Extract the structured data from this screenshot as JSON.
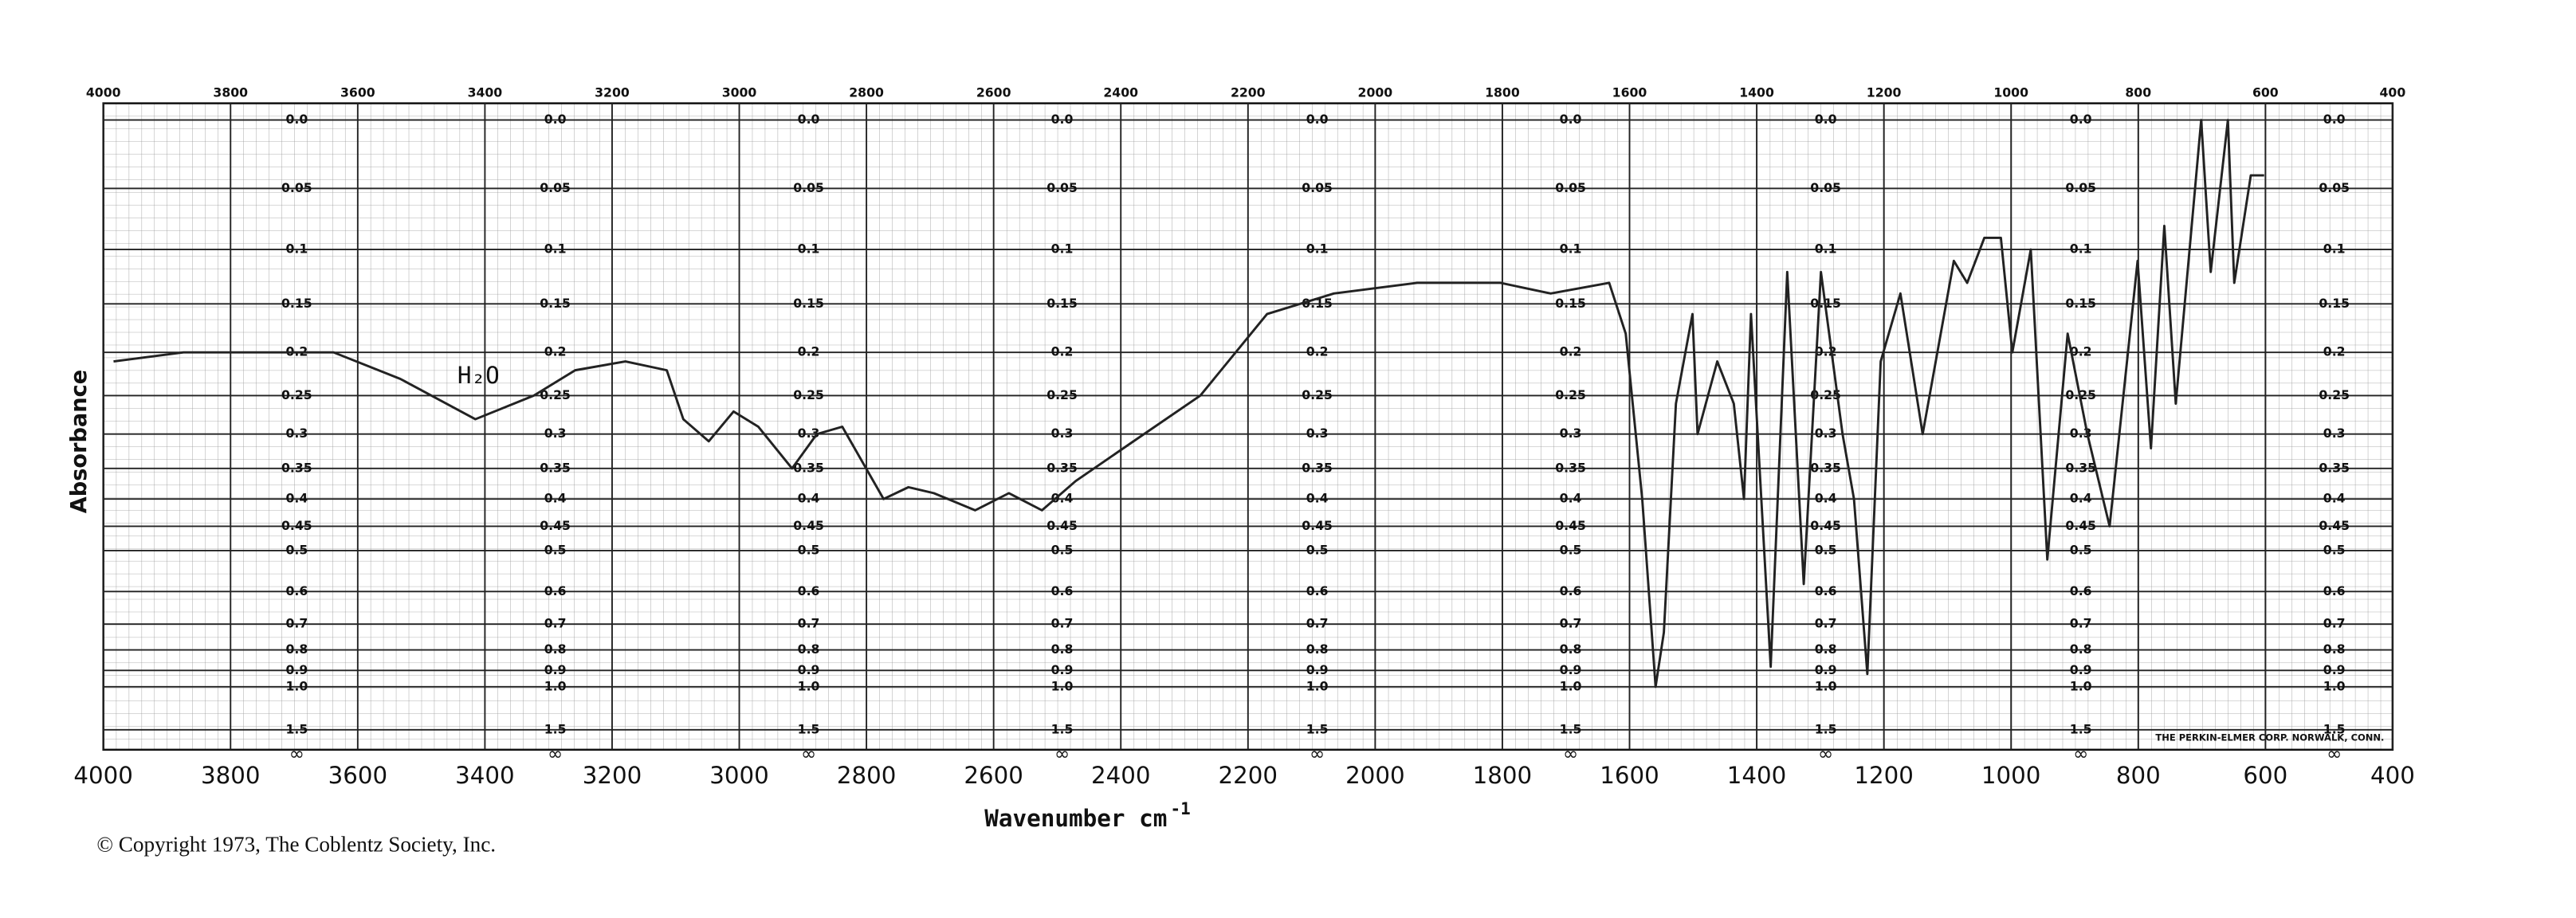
{
  "chart_data": {
    "type": "line",
    "xlabel": "Wavenumber cm",
    "xlabel_superscript": "-1",
    "ylabel": "Absorbance",
    "annotation": "H₂O",
    "y_bottom_label": "∞",
    "imprint": "THE PERKIN-ELMER CORP. NORWALK, CONN.",
    "copyright": "© Copyright 1973, The Coblentz Society, Inc.",
    "color": "#222222",
    "grid": true,
    "yscale": "transmittance",
    "xlim": [
      4000,
      400
    ],
    "ylim": [
      0,
      2
    ],
    "xticks": [
      4000,
      3800,
      3600,
      3400,
      3200,
      3000,
      2800,
      2600,
      2400,
      2200,
      2000,
      1800,
      1600,
      1400,
      1200,
      1000,
      800,
      600,
      400
    ],
    "yticks": [
      {
        "value": 0,
        "label": "0.0"
      },
      0.05,
      0.1,
      0.15,
      0.2,
      0.25,
      0.3,
      0.35,
      0.4,
      0.45,
      0.5,
      0.6,
      0.7,
      0.8,
      0.9,
      {
        "value": 1,
        "label": "1.0"
      },
      1.5
    ],
    "x": [
      3984,
      3874,
      3638,
      3533,
      3415,
      3323,
      3258,
      3179,
      3114,
      3088,
      3048,
      3009,
      2970,
      2917,
      2878,
      2838,
      2773,
      2734,
      2694,
      2629,
      2576,
      2524,
      2471,
      2380,
      2275,
      2170,
      2065,
      1934,
      1803,
      1724,
      1632,
      1606,
      1580,
      1559,
      1546,
      1527,
      1501,
      1493,
      1462,
      1436,
      1420,
      1409,
      1378,
      1352,
      1326,
      1299,
      1265,
      1247,
      1226,
      1205,
      1174,
      1139,
      1090,
      1069,
      1042,
      1016,
      998,
      969,
      943,
      911,
      880,
      845,
      801,
      780,
      759,
      741,
      701,
      686,
      659,
      649,
      623,
      602
    ],
    "values": [
      0.21,
      0.2,
      0.2,
      0.23,
      0.28,
      0.25,
      0.22,
      0.21,
      0.22,
      0.28,
      0.31,
      0.27,
      0.29,
      0.35,
      0.3,
      0.29,
      0.4,
      0.38,
      0.39,
      0.42,
      0.39,
      0.42,
      0.37,
      0.31,
      0.25,
      0.16,
      0.14,
      0.13,
      0.13,
      0.14,
      0.13,
      0.18,
      0.4,
      1.0,
      0.73,
      0.26,
      0.16,
      0.3,
      0.21,
      0.26,
      0.4,
      0.16,
      0.88,
      0.12,
      0.58,
      0.12,
      0.3,
      0.4,
      0.92,
      0.21,
      0.14,
      0.3,
      0.11,
      0.13,
      0.09,
      0.09,
      0.2,
      0.1,
      0.52,
      0.18,
      0.3,
      0.45,
      0.11,
      0.32,
      0.08,
      0.26,
      0.0,
      0.12,
      0.0,
      0.13,
      0.04,
      0.04
    ]
  }
}
